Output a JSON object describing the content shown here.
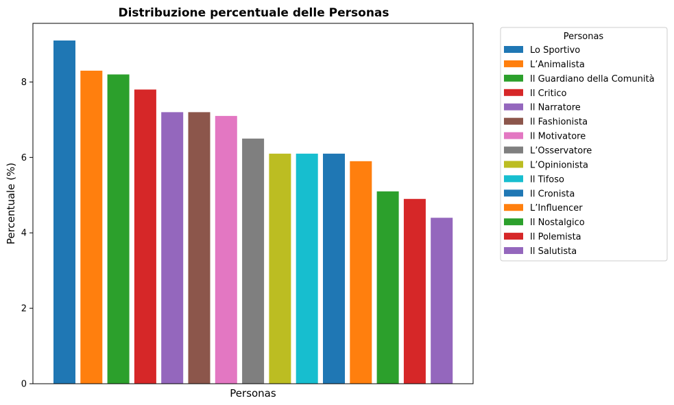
{
  "chart_data": {
    "type": "bar",
    "title": "Distribuzione percentuale delle Personas",
    "xlabel": "Personas",
    "ylabel": "Percentuale (%)",
    "ylim": [
      0,
      9.555
    ],
    "yticks": [
      0,
      2,
      4,
      6,
      8
    ],
    "grid": false,
    "legend_title": "Personas",
    "legend_position": "outside-right",
    "categories": [
      "Lo Sportivo",
      "L’Animalista",
      "Il Guardiano della Comunità",
      "Il Critico",
      "Il Narratore",
      "Il Fashionista",
      "Il Motivatore",
      "L’Osservatore",
      "L’Opinionista",
      "Il Tifoso",
      "Il Cronista",
      "L’Influencer",
      "Il Nostalgico",
      "Il Polemista",
      "Il Salutista"
    ],
    "values": [
      9.1,
      8.3,
      8.2,
      7.8,
      7.2,
      7.2,
      7.1,
      6.5,
      6.1,
      6.1,
      6.1,
      5.9,
      5.1,
      4.9,
      4.4
    ],
    "colors": [
      "#1f77b4",
      "#ff7f0e",
      "#2ca02c",
      "#d62728",
      "#9467bd",
      "#8c564b",
      "#e377c2",
      "#7f7f7f",
      "#bcbd22",
      "#17becf",
      "#1f77b4",
      "#ff7f0e",
      "#2ca02c",
      "#d62728",
      "#9467bd"
    ]
  }
}
